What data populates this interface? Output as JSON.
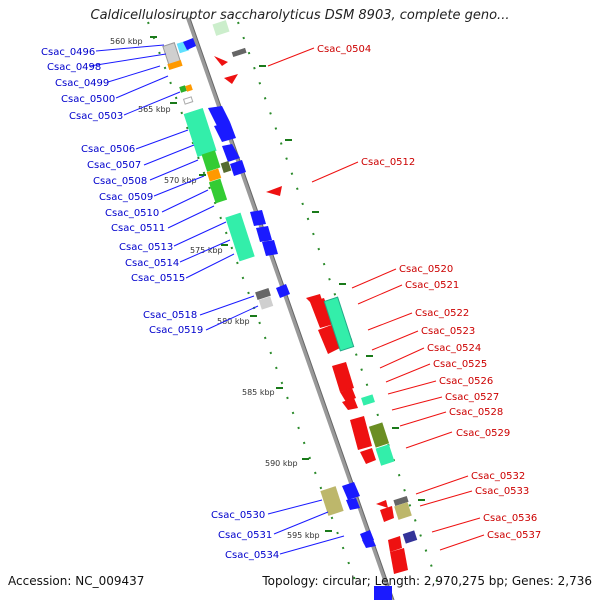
{
  "title": "Caldicellulosiruptor saccharolyticus DSM 8903, complete geno...",
  "footer": {
    "accession": "Accession: NC_009437",
    "summary": "Topology: circular; Length: 2,970,275 bp; Genes: 2,736"
  },
  "colors": {
    "backbone": "#999999",
    "forward_label": "#0000cc",
    "reverse_label": "#cc0000",
    "tick": "#008000"
  },
  "scale_ticks": [
    "560 kbp",
    "565 kbp",
    "570 kbp",
    "575 kbp",
    "580 kbp",
    "585 kbp",
    "590 kbp",
    "595 kbp"
  ],
  "forward_labels": [
    "Csac_0496",
    "Csac_0498",
    "Csac_0499",
    "Csac_0500",
    "Csac_0503",
    "Csac_0506",
    "Csac_0507",
    "Csac_0508",
    "Csac_0509",
    "Csac_0510",
    "Csac_0511",
    "Csac_0513",
    "Csac_0514",
    "Csac_0515",
    "Csac_0518",
    "Csac_0519",
    "Csac_0530",
    "Csac_0531",
    "Csac_0534"
  ],
  "reverse_labels": [
    "Csac_0504",
    "Csac_0512",
    "Csac_0520",
    "Csac_0521",
    "Csac_0522",
    "Csac_0523",
    "Csac_0524",
    "Csac_0525",
    "Csac_0526",
    "Csac_0527",
    "Csac_0528",
    "Csac_0529",
    "Csac_0532",
    "Csac_0533",
    "Csac_0536",
    "Csac_0537"
  ]
}
